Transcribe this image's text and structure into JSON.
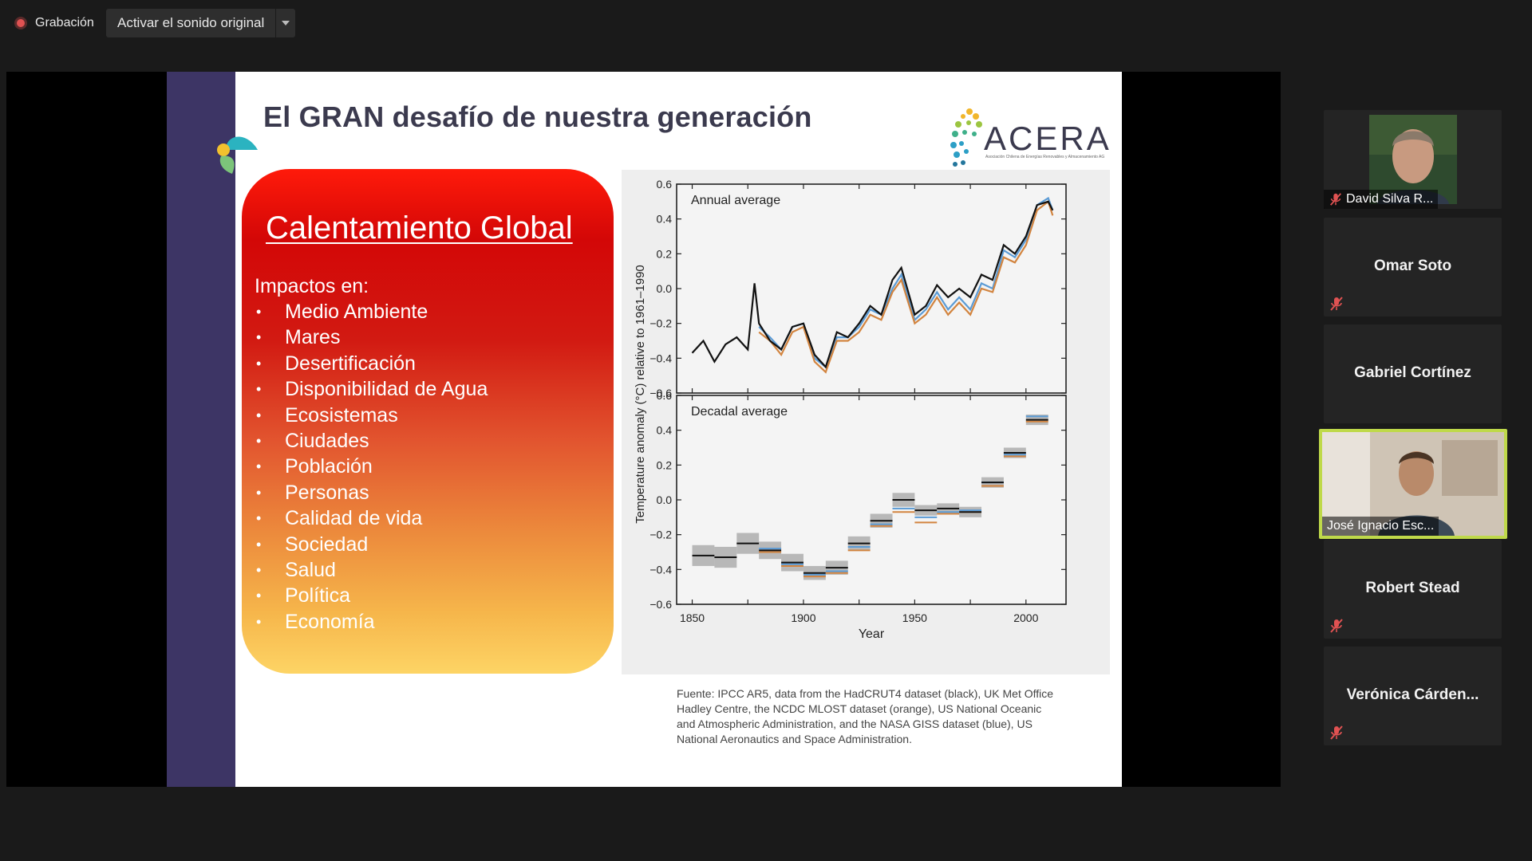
{
  "topbar": {
    "recording_label": "Grabación",
    "original_sound_label": "Activar el sonido original"
  },
  "slide": {
    "title": "El GRAN desafío de nuestra generación",
    "logo_text": "ACERA",
    "logo_subtitle": "Asociación Chilena de Energías Renovables y Almacenamiento AG",
    "heading": "Calentamiento Global",
    "intro": "Impactos en:",
    "impacts": [
      "Medio Ambiente",
      "Mares",
      "Desertificación",
      "Disponibilidad de Agua",
      "Ecosistemas",
      "Ciudades",
      "Población",
      "Personas",
      "Calidad de vida",
      "Sociedad",
      "Salud",
      "Política",
      "Economía"
    ],
    "bullet": "•",
    "source": "Fuente: IPCC AR5, data from the HadCRUT4 dataset (black), UK Met Office Hadley Centre, the NCDC MLOST dataset (orange), US National Oceanic and Atmospheric Administration, and the NASA GISS dataset (blue), US National Aeronautics and Space Administration."
  },
  "chart_data": [
    {
      "type": "line",
      "title": "Annual average",
      "ylabel": "Temperature anomaly (°C) relative to 1961–1990",
      "xlim": [
        1843,
        2018
      ],
      "ylim": [
        -0.6,
        0.6
      ],
      "yticks": [
        0.6,
        0.4,
        0.2,
        0.0,
        -0.2,
        -0.4,
        -0.6
      ],
      "ytick_labels": [
        "0.6",
        "0.4",
        "0.2",
        "0.0",
        "−0.2",
        "−0.4",
        "−0.6"
      ],
      "series": [
        {
          "color": "#111111",
          "x": [
            1850,
            1855,
            1860,
            1865,
            1870,
            1875,
            1878,
            1880,
            1885,
            1890,
            1895,
            1900,
            1905,
            1910,
            1915,
            1920,
            1925,
            1930,
            1935,
            1940,
            1944,
            1950,
            1955,
            1960,
            1965,
            1970,
            1975,
            1980,
            1985,
            1990,
            1995,
            2000,
            2005,
            2010,
            2012
          ],
          "values": [
            -0.37,
            -0.3,
            -0.42,
            -0.32,
            -0.28,
            -0.35,
            0.03,
            -0.2,
            -0.3,
            -0.35,
            -0.22,
            -0.2,
            -0.38,
            -0.45,
            -0.25,
            -0.28,
            -0.2,
            -0.1,
            -0.15,
            0.05,
            0.12,
            -0.15,
            -0.1,
            0.02,
            -0.05,
            0.0,
            -0.05,
            0.08,
            0.05,
            0.25,
            0.2,
            0.3,
            0.48,
            0.5,
            0.45
          ]
        },
        {
          "color": "#d2843f",
          "x": [
            1880,
            1885,
            1890,
            1895,
            1900,
            1905,
            1910,
            1915,
            1920,
            1925,
            1930,
            1935,
            1940,
            1944,
            1950,
            1955,
            1960,
            1965,
            1970,
            1975,
            1980,
            1985,
            1990,
            1995,
            2000,
            2005,
            2010,
            2012
          ],
          "values": [
            -0.25,
            -0.3,
            -0.38,
            -0.25,
            -0.22,
            -0.42,
            -0.48,
            -0.3,
            -0.3,
            -0.25,
            -0.15,
            -0.18,
            -0.02,
            0.05,
            -0.2,
            -0.15,
            -0.05,
            -0.15,
            -0.08,
            -0.15,
            0.0,
            -0.02,
            0.18,
            0.15,
            0.25,
            0.45,
            0.5,
            0.42
          ]
        },
        {
          "color": "#5b9bd5",
          "x": [
            1880,
            1885,
            1890,
            1895,
            1900,
            1905,
            1910,
            1915,
            1920,
            1925,
            1930,
            1935,
            1940,
            1944,
            1950,
            1955,
            1960,
            1965,
            1970,
            1975,
            1980,
            1985,
            1990,
            1995,
            2000,
            2005,
            2010,
            2012
          ],
          "values": [
            -0.22,
            -0.28,
            -0.35,
            -0.22,
            -0.2,
            -0.4,
            -0.45,
            -0.28,
            -0.28,
            -0.22,
            -0.12,
            -0.15,
            0.0,
            0.08,
            -0.18,
            -0.12,
            -0.02,
            -0.12,
            -0.05,
            -0.12,
            0.03,
            0.0,
            0.22,
            0.18,
            0.28,
            0.48,
            0.52,
            0.45
          ]
        }
      ]
    },
    {
      "type": "bar",
      "title": "Decadal average",
      "xlabel": "Year",
      "ylabel": "Temperature anomaly (°C) relative to 1961–1990",
      "xlim": [
        1843,
        2018
      ],
      "ylim": [
        -0.6,
        0.6
      ],
      "xticks": [
        1850,
        1900,
        1950,
        2000
      ],
      "yticks": [
        0.6,
        0.4,
        0.2,
        0.0,
        -0.2,
        -0.4,
        -0.6
      ],
      "ytick_labels": [
        "0.6",
        "0.4",
        "0.2",
        "0.0",
        "−0.2",
        "−0.4",
        "−0.6"
      ],
      "decades": [
        1850,
        1860,
        1870,
        1880,
        1890,
        1900,
        1910,
        1920,
        1930,
        1940,
        1950,
        1960,
        1970,
        1980,
        1990,
        2000
      ],
      "values_black": [
        -0.32,
        -0.33,
        -0.25,
        -0.29,
        -0.36,
        -0.42,
        -0.39,
        -0.25,
        -0.12,
        0.0,
        -0.06,
        -0.05,
        -0.07,
        0.1,
        0.27,
        0.46
      ],
      "values_orange": [
        null,
        null,
        null,
        -0.3,
        -0.38,
        -0.44,
        -0.42,
        -0.29,
        -0.15,
        -0.07,
        -0.13,
        -0.08,
        -0.07,
        0.08,
        0.25,
        0.45
      ],
      "values_blue": [
        null,
        null,
        null,
        -0.28,
        -0.37,
        -0.43,
        -0.41,
        -0.27,
        -0.14,
        -0.05,
        -0.1,
        -0.07,
        -0.06,
        0.1,
        0.26,
        0.48
      ],
      "uncertainty": [
        0.06,
        0.06,
        0.06,
        0.05,
        0.05,
        0.04,
        0.04,
        0.04,
        0.04,
        0.04,
        0.03,
        0.03,
        0.03,
        0.03,
        0.03,
        0.03
      ]
    }
  ],
  "participants": [
    {
      "name": "David Silva R...",
      "muted": true,
      "video": true
    },
    {
      "name": "Omar Soto",
      "muted": true,
      "video": false
    },
    {
      "name": "Gabriel Cortínez",
      "muted": false,
      "video": false
    },
    {
      "name": "José Ignacio Esc...",
      "muted": false,
      "video": true,
      "active": true
    },
    {
      "name": "Robert Stead",
      "muted": true,
      "video": false
    },
    {
      "name": "Verónica Cárden...",
      "muted": true,
      "video": false
    }
  ]
}
